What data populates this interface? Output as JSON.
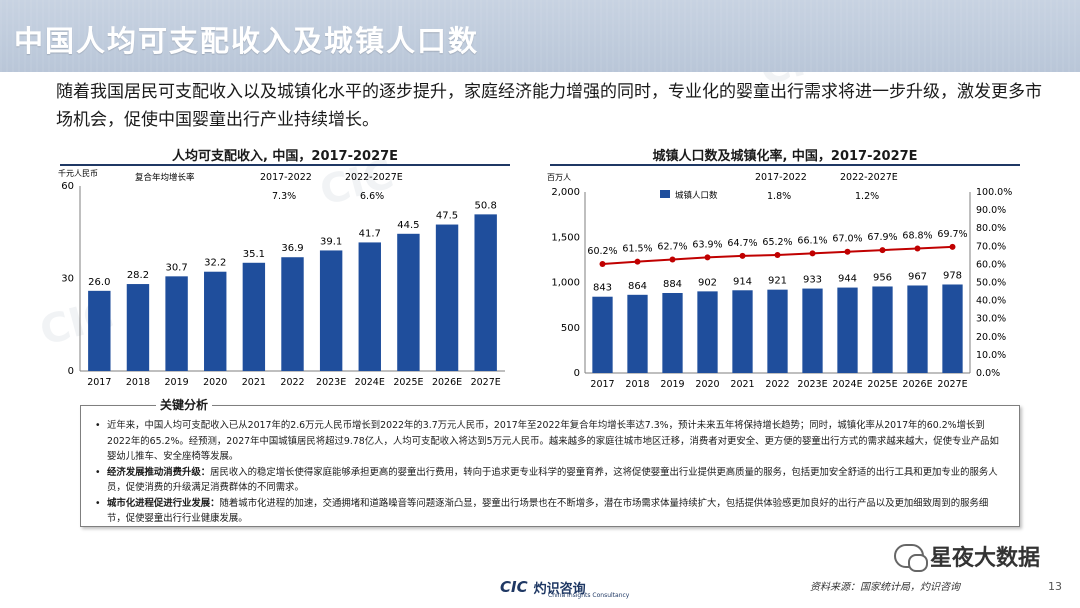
{
  "header": {
    "title": "中国人均可支配收入及城镇人口数"
  },
  "intro": "随着我国居民可支配收入以及城镇化水平的逐步提升，家庭经济能力增强的同时，专业化的婴童出行需求将进一步升级，激发更多市场机会，促使中国婴童出行产业持续增长。",
  "chart_left_meta": {
    "unit": "千元人民币",
    "cagr_label": "复合年均增长率",
    "cagr_period1": "2017-2022",
    "cagr_period2": "2022-2027E",
    "cagr_value1": "7.3%",
    "cagr_value2": "6.6%"
  },
  "chart_right_meta": {
    "unit": "百万人",
    "legend": "城镇人口数",
    "cagr_period1": "2017-2022",
    "cagr_period2": "2022-2027E",
    "cagr_value1": "1.8%",
    "cagr_value2": "1.2%"
  },
  "chart_data": [
    {
      "type": "bar",
      "title": "人均可支配收入, 中国，2017-2027E",
      "categories": [
        "2017",
        "2018",
        "2019",
        "2020",
        "2021",
        "2022",
        "2023E",
        "2024E",
        "2025E",
        "2026E",
        "2027E"
      ],
      "values": [
        26.0,
        28.2,
        30.7,
        32.2,
        35.1,
        36.9,
        39.1,
        41.7,
        44.5,
        47.5,
        50.8
      ],
      "ylim": [
        0,
        60
      ],
      "yticks": [
        0,
        30,
        60
      ],
      "color": "#1f4e9c"
    },
    {
      "type": "bar",
      "title": "城镇人口数及城镇化率, 中国，2017-2027E",
      "categories": [
        "2017",
        "2018",
        "2019",
        "2020",
        "2021",
        "2022",
        "2023E",
        "2024E",
        "2025E",
        "2026E",
        "2027E"
      ],
      "series": [
        {
          "name": "城镇人口数",
          "type": "bar",
          "values": [
            843,
            864,
            884,
            902,
            914,
            921,
            933,
            944,
            956,
            967,
            978
          ],
          "color": "#1f4e9c"
        },
        {
          "type": "line",
          "axis": "right",
          "values": [
            60.2,
            61.5,
            62.7,
            63.9,
            64.7,
            65.2,
            66.1,
            67.0,
            67.9,
            68.8,
            69.7
          ],
          "color": "#c00000"
        }
      ],
      "ylim": [
        0,
        2000
      ],
      "yticks": [
        "0",
        "500",
        "1,000",
        "1,500",
        "2,000"
      ],
      "y2lim": [
        0,
        100
      ],
      "y2ticks": [
        "0.0%",
        "10.0%",
        "20.0%",
        "30.0%",
        "40.0%",
        "50.0%",
        "60.0%",
        "70.0%",
        "80.0%",
        "90.0%",
        "100.0%"
      ]
    }
  ],
  "analysis": {
    "title": "关键分析",
    "items": [
      {
        "lead": "",
        "text": "近年来，中国人均可支配收入已从2017年的2.6万元人民币增长到2022年的3.7万元人民币，2017年至2022年复合年均增长率达7.3%，预计未来五年将保持增长趋势；同时，城镇化率从2017年的60.2%增长到2022年的65.2%。经预测，2027年中国城镇居民将超过9.78亿人，人均可支配收入将达到5万元人民币。越来越多的家庭往城市地区迁移，消费者对更安全、更方便的婴童出行方式的需求越来越大，促使专业产品如婴幼儿推车、安全座椅等发展。"
      },
      {
        "lead": "经济发展推动消费升级：",
        "text": "居民收入的稳定增长使得家庭能够承担更高的婴童出行费用，转向于追求更专业科学的婴童育养，这将促使婴童出行业提供更高质量的服务，包括更加安全舒适的出行工具和更加专业的服务人员，促使消费的升级满足消费群体的不同需求。"
      },
      {
        "lead": "城市化进程促进行业发展：",
        "text": "随着城市化进程的加速，交通拥堵和道路噪音等问题逐渐凸显，婴童出行场景也在不断增多，潜在市场需求体量持续扩大，包括提供体验感更加良好的出行产品以及更加细致周到的服务细节，促使婴童出行行业健康发展。"
      }
    ]
  },
  "footer": {
    "source": "资料来源：国家统计局，灼识咨询",
    "page": "13",
    "brand_logo": "CIC",
    "brand_name": "灼识咨询",
    "brand_sub": "China Insights Consultancy",
    "wechat": "星夜大数据"
  }
}
